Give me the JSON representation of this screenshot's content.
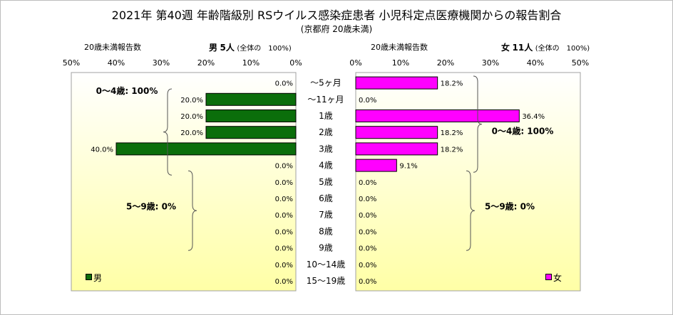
{
  "title": "2021年 第40週 年齢階級別 RSウイルス感染症患者 小児科定点医療機関からの報告割合",
  "subtitle": "(京都府 20歳未満)",
  "colors": {
    "male": "#0b6e0b",
    "female": "#ff00ff",
    "plot_bg_top": "#ffffff",
    "plot_bg_bottom": "#ffffa6"
  },
  "headers": {
    "left_under20": "20歳未満報告数",
    "male_label": "男",
    "male_count": "5",
    "female_label": "女",
    "female_count": "11",
    "unit": "人",
    "total_note": "(全体の　100%)"
  },
  "legend": {
    "male": "男",
    "female": "女"
  },
  "chart_data": {
    "type": "bar",
    "orientation": "horizontal",
    "layout": "population-pyramid",
    "categories": [
      "～5ヶ月",
      "～11ヶ月",
      "1歳",
      "2歳",
      "3歳",
      "4歳",
      "5歳",
      "6歳",
      "7歳",
      "8歳",
      "9歳",
      "10～14歳",
      "15～19歳"
    ],
    "series": [
      {
        "name": "男",
        "side": "left",
        "color": "#0b6e0b",
        "values": [
          0,
          20,
          20,
          20,
          40,
          0,
          0,
          0,
          0,
          0,
          0,
          0,
          0
        ],
        "labels": [
          "0.0%",
          "20.0%",
          "20.0%",
          "20.0%",
          "40.0%",
          "0.0%",
          "0.0%",
          "0.0%",
          "0.0%",
          "0.0%",
          "0.0%",
          "0.0%",
          "0.0%"
        ]
      },
      {
        "name": "女",
        "side": "right",
        "color": "#ff00ff",
        "values": [
          18.2,
          0,
          36.4,
          18.2,
          18.2,
          9.1,
          0,
          0,
          0,
          0,
          0,
          0,
          0
        ],
        "labels": [
          "18.2%",
          "0.0%",
          "36.4%",
          "18.2%",
          "18.2%",
          "9.1%",
          "0.0%",
          "0.0%",
          "0.0%",
          "0.0%",
          "0.0%",
          "0.0%",
          "0.0%"
        ]
      }
    ],
    "xlim": [
      0,
      50
    ],
    "xticks": [
      "0%",
      "10%",
      "20%",
      "30%",
      "40%",
      "50%"
    ],
    "grid": false,
    "legend_position": "bottom",
    "annotations": {
      "male": [
        {
          "text": "0～4歳: 100%",
          "from_category": 0,
          "to_category": 5
        },
        {
          "text": "5～9歳: 0%",
          "from_category": 6,
          "to_category": 10
        }
      ],
      "female": [
        {
          "text": "0～4歳: 100%",
          "from_category": 0,
          "to_category": 5
        },
        {
          "text": "5～9歳: 0%",
          "from_category": 6,
          "to_category": 10
        }
      ]
    }
  }
}
